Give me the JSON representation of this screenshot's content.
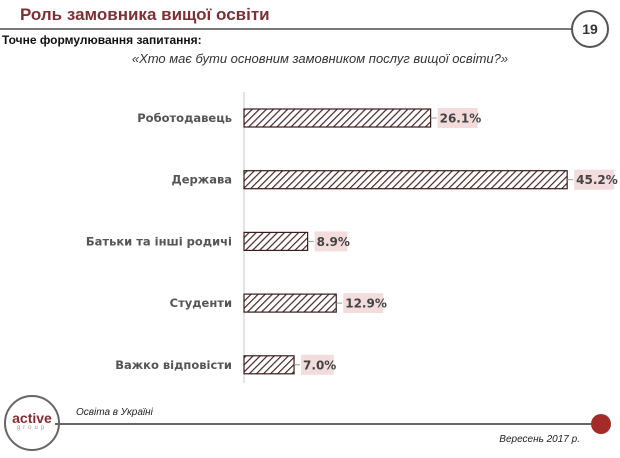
{
  "header": {
    "title": "Роль замовника вищої освіти",
    "page_number": "19"
  },
  "question_label": "Точне формулювання запитання:",
  "question": "«Хто має бути основним замовником послуг вищої освіти?»",
  "chart_data": {
    "type": "bar",
    "orientation": "horizontal",
    "categories": [
      "Роботодавець",
      "Держава",
      "Батьки та інші родичі",
      "Студенти",
      "Важко відповісти"
    ],
    "values": [
      26.1,
      45.2,
      8.9,
      12.9,
      7.0
    ],
    "data_labels": [
      "26.1%",
      "45.2%",
      "8.9%",
      "12.9%",
      "7.0%"
    ],
    "xlim": [
      0,
      50
    ],
    "grid": false,
    "bar_fill": "hatched",
    "bar_color": "#4a2626",
    "label_bg": "#f2dcdc"
  },
  "footer": {
    "logo": "active group",
    "source": "Освіта в Україні",
    "date": "Вересень 2017 р."
  },
  "colors": {
    "accent": "#7f3035",
    "dot": "#a52a2a"
  }
}
